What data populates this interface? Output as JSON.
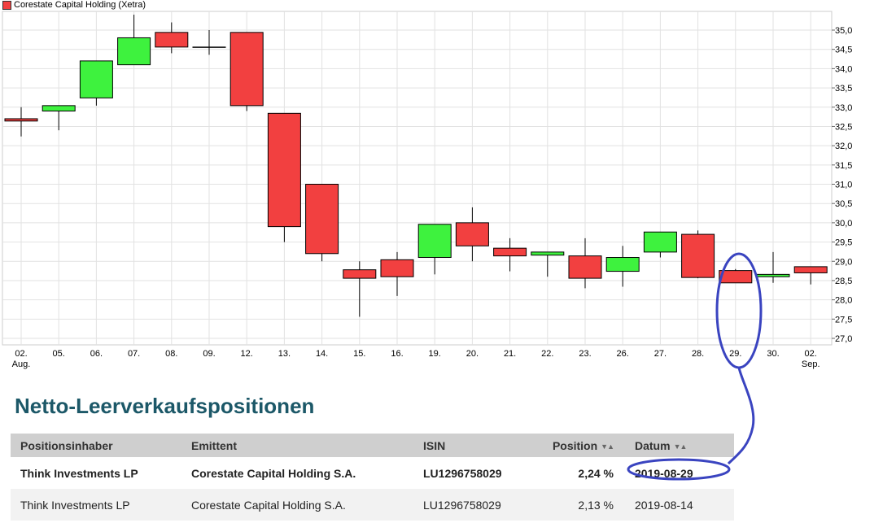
{
  "chart_data": {
    "type": "candlestick",
    "legend": "Corestate Capital Holding (Xetra)",
    "categories": [
      "02.",
      "05.",
      "06.",
      "07.",
      "08.",
      "09.",
      "12.",
      "13.",
      "14.",
      "15.",
      "16.",
      "19.",
      "20.",
      "21.",
      "22.",
      "23.",
      "26.",
      "27.",
      "28.",
      "29.",
      "30.",
      "02."
    ],
    "category_sublabels": {
      "0": "Aug.",
      "21": "Sep."
    },
    "y_ticks": [
      "35,0",
      "34,5",
      "34,0",
      "33,5",
      "33,0",
      "32,5",
      "32,0",
      "31,5",
      "31,0",
      "30,5",
      "30,0",
      "29,5",
      "29,0",
      "28,5",
      "28,0",
      "27,5",
      "27,0"
    ],
    "ylim": [
      26.8,
      35.4
    ],
    "grid": true,
    "candles": [
      {
        "open": 32.7,
        "close": 32.64,
        "high": 33.0,
        "low": 32.24
      },
      {
        "open": 32.9,
        "close": 33.04,
        "high": 33.04,
        "low": 32.4
      },
      {
        "open": 33.24,
        "close": 34.2,
        "high": 34.2,
        "low": 33.04
      },
      {
        "open": 34.1,
        "close": 34.8,
        "high": 35.4,
        "low": 34.1
      },
      {
        "open": 34.94,
        "close": 34.56,
        "high": 35.2,
        "low": 34.4
      },
      {
        "open": 34.56,
        "close": 34.56,
        "high": 35.0,
        "low": 34.36
      },
      {
        "open": 34.94,
        "close": 33.04,
        "high": 34.94,
        "low": 32.9
      },
      {
        "open": 32.84,
        "close": 29.9,
        "high": 32.84,
        "low": 29.5
      },
      {
        "open": 31.0,
        "close": 29.2,
        "high": 31.0,
        "low": 29.0
      },
      {
        "open": 28.78,
        "close": 28.56,
        "high": 29.0,
        "low": 27.56
      },
      {
        "open": 29.04,
        "close": 28.6,
        "high": 29.24,
        "low": 28.1
      },
      {
        "open": 29.1,
        "close": 29.96,
        "high": 29.96,
        "low": 28.66
      },
      {
        "open": 30.0,
        "close": 29.4,
        "high": 30.4,
        "low": 29.0
      },
      {
        "open": 29.34,
        "close": 29.14,
        "high": 29.6,
        "low": 28.74
      },
      {
        "open": 29.16,
        "close": 29.24,
        "high": 29.24,
        "low": 28.6
      },
      {
        "open": 29.14,
        "close": 28.56,
        "high": 29.6,
        "low": 28.3
      },
      {
        "open": 28.74,
        "close": 29.1,
        "high": 29.4,
        "low": 28.34
      },
      {
        "open": 29.24,
        "close": 29.76,
        "high": 29.76,
        "low": 29.1
      },
      {
        "open": 29.7,
        "close": 28.58,
        "high": 29.8,
        "low": 28.56
      },
      {
        "open": 28.76,
        "close": 28.44,
        "high": 28.8,
        "low": 28.44
      },
      {
        "open": 28.6,
        "close": 28.66,
        "high": 29.24,
        "low": 28.44
      },
      {
        "open": 28.86,
        "close": 28.7,
        "high": 28.86,
        "low": 28.4
      }
    ],
    "up_color": "#3ef23e",
    "down_color": "#f24040"
  },
  "section": {
    "title": "Netto-Leerverkaufspositionen"
  },
  "table": {
    "headers": {
      "holder": "Positionsinhaber",
      "issuer": "Emittent",
      "isin": "ISIN",
      "position": "Position",
      "date": "Datum"
    },
    "sort_icon": "sort-arrows-icon",
    "rows": [
      {
        "holder": "Think Investments LP",
        "issuer": "Corestate Capital Holding S.A.",
        "isin": "LU1296758029",
        "position": "2,24 %",
        "date": "2019-08-29"
      },
      {
        "holder": "Think Investments LP",
        "issuer": "Corestate Capital Holding S.A.",
        "isin": "LU1296758029",
        "position": "2,13 %",
        "date": "2019-08-14"
      }
    ]
  },
  "annotation_color": "#3a44c0"
}
